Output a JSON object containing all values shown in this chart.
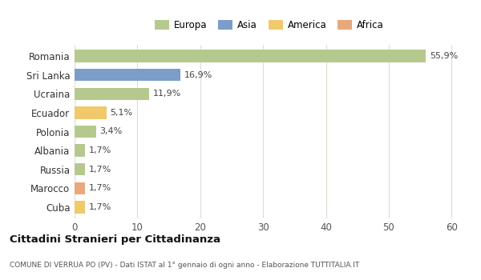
{
  "categories": [
    "Romania",
    "Sri Lanka",
    "Ucraina",
    "Ecuador",
    "Polonia",
    "Albania",
    "Russia",
    "Marocco",
    "Cuba"
  ],
  "values": [
    55.9,
    16.9,
    11.9,
    5.1,
    3.4,
    1.7,
    1.7,
    1.7,
    1.7
  ],
  "labels": [
    "55,9%",
    "16,9%",
    "11,9%",
    "5,1%",
    "3,4%",
    "1,7%",
    "1,7%",
    "1,7%",
    "1,7%"
  ],
  "colors": [
    "#b5c98e",
    "#7b9dc7",
    "#b5c98e",
    "#f0c96b",
    "#b5c98e",
    "#b5c98e",
    "#b5c98e",
    "#e8a87c",
    "#f0c96b"
  ],
  "legend_labels": [
    "Europa",
    "Asia",
    "America",
    "Africa"
  ],
  "legend_colors": [
    "#b5c98e",
    "#7b9dc7",
    "#f0c96b",
    "#e8a87c"
  ],
  "title": "Cittadini Stranieri per Cittadinanza",
  "subtitle": "COMUNE DI VERRUA PO (PV) - Dati ISTAT al 1° gennaio di ogni anno - Elaborazione TUTTITALIA.IT",
  "xlim": [
    0,
    62
  ],
  "xticks": [
    0,
    10,
    20,
    30,
    40,
    50,
    60
  ],
  "background_color": "#ffffff",
  "grid_color": "#d8e0d0"
}
